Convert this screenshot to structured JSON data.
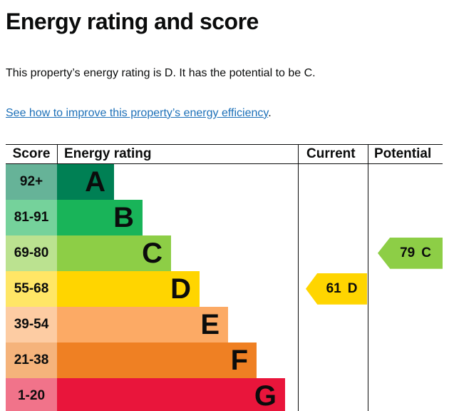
{
  "page": {
    "title": "Energy rating and score",
    "intro": "This property’s energy rating is D. It has the potential to be C.",
    "improve_link": "See how to improve this property’s energy efficiency",
    "improve_link_suffix": "."
  },
  "colors": {
    "text": "#0b0c0c",
    "link": "#1d70b8",
    "chart_lines": "#0b0c0c"
  },
  "chart_data": {
    "type": "bar",
    "title": "Energy rating and score",
    "headers": {
      "score": "Score",
      "rating": "Energy rating",
      "current": "Current",
      "potential": "Potential"
    },
    "bands": [
      {
        "score": "92+",
        "letter": "A",
        "color": "#008054",
        "score_bg": "#66b398"
      },
      {
        "score": "81-91",
        "letter": "B",
        "color": "#19b459",
        "score_bg": "#75d29b"
      },
      {
        "score": "69-80",
        "letter": "C",
        "color": "#8dce46",
        "score_bg": "#bbe290"
      },
      {
        "score": "55-68",
        "letter": "D",
        "color": "#ffd500",
        "score_bg": "#ffe666"
      },
      {
        "score": "39-54",
        "letter": "E",
        "color": "#fcaa65",
        "score_bg": "#fdcca3"
      },
      {
        "score": "21-38",
        "letter": "F",
        "color": "#ef8023",
        "score_bg": "#f5b37b"
      },
      {
        "score": "1-20",
        "letter": "G",
        "color": "#e9153b",
        "score_bg": "#f1738a"
      }
    ],
    "current": {
      "value": "61",
      "letter": "D",
      "band_index": 3,
      "color": "#ffd500"
    },
    "potential": {
      "value": "79",
      "letter": "C",
      "band_index": 2,
      "color": "#8dce46"
    }
  }
}
